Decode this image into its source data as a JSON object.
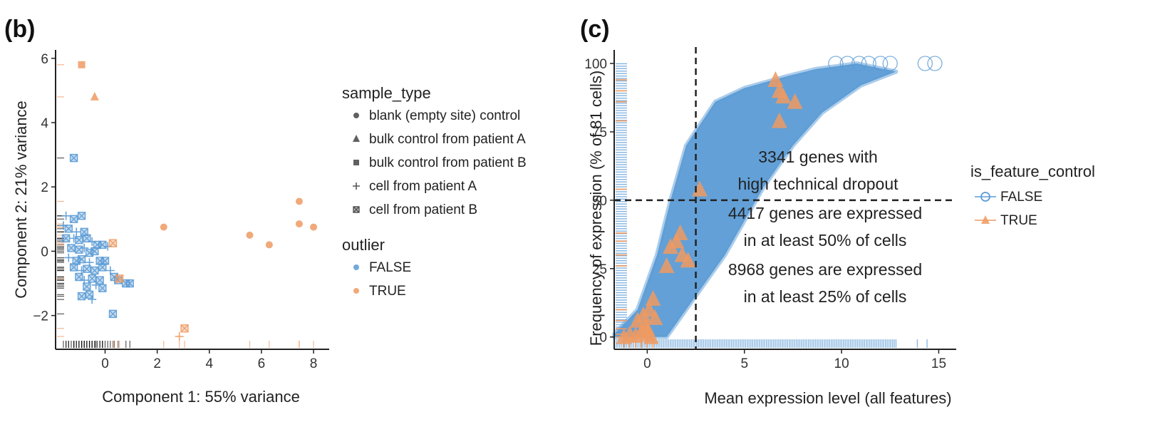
{
  "colors": {
    "false": "#5b9bd5",
    "true": "#ee9a62",
    "axis": "#222222",
    "rug": "#111111",
    "guide": "#222222"
  },
  "chart_data": [
    {
      "panel_label": "(b)",
      "type": "scatter",
      "xlabel": "Component 1: 55% variance",
      "ylabel": "Component 2: 21% variance",
      "xlim": [
        -1.9,
        8.6
      ],
      "ylim": [
        -3.05,
        6.35
      ],
      "xticks": [
        0,
        2,
        4,
        6,
        8
      ],
      "yticks": [
        -2,
        0,
        2,
        4,
        6
      ],
      "xtick_labels": [
        "0",
        "2",
        "4",
        "6",
        "8"
      ],
      "ytick_labels": [
        "−2",
        "0",
        "2",
        "4",
        "6"
      ],
      "rug": true,
      "legends": [
        {
          "title": "sample_type",
          "entries": [
            {
              "label": "blank (empty site) control",
              "shape": "circle"
            },
            {
              "label": "bulk control from patient A",
              "shape": "triangle"
            },
            {
              "label": "bulk control from patient B",
              "shape": "square"
            },
            {
              "label": "cell from patient A",
              "shape": "plus"
            },
            {
              "label": "cell from patient B",
              "shape": "boxx"
            }
          ]
        },
        {
          "title": "outlier",
          "entries": [
            {
              "label": "FALSE",
              "shape": "circle",
              "color": "#5b9bd5"
            },
            {
              "label": "TRUE",
              "shape": "circle",
              "color": "#ee9a62"
            }
          ]
        }
      ],
      "points": [
        {
          "x": -0.9,
          "y": 5.8,
          "shape": "square",
          "outlier": "TRUE"
        },
        {
          "x": -0.4,
          "y": 4.8,
          "shape": "triangle",
          "outlier": "TRUE"
        },
        {
          "x": -1.2,
          "y": 2.9,
          "shape": "boxx",
          "outlier": "FALSE"
        },
        {
          "x": -1.5,
          "y": 1.1,
          "shape": "plus",
          "outlier": "FALSE"
        },
        {
          "x": -1.2,
          "y": 1.0,
          "shape": "boxx",
          "outlier": "FALSE"
        },
        {
          "x": -0.9,
          "y": 1.1,
          "shape": "boxx",
          "outlier": "FALSE"
        },
        {
          "x": -1.6,
          "y": 0.8,
          "shape": "plus",
          "outlier": "FALSE"
        },
        {
          "x": -1.4,
          "y": 0.7,
          "shape": "boxx",
          "outlier": "FALSE"
        },
        {
          "x": -1.1,
          "y": 0.6,
          "shape": "plus",
          "outlier": "FALSE"
        },
        {
          "x": -0.8,
          "y": 0.6,
          "shape": "boxx",
          "outlier": "FALSE"
        },
        {
          "x": -1.5,
          "y": 0.4,
          "shape": "boxx",
          "outlier": "FALSE"
        },
        {
          "x": -1.2,
          "y": 0.4,
          "shape": "plus",
          "outlier": "FALSE"
        },
        {
          "x": -1.0,
          "y": 0.35,
          "shape": "boxx",
          "outlier": "FALSE"
        },
        {
          "x": -0.7,
          "y": 0.4,
          "shape": "boxx",
          "outlier": "FALSE"
        },
        {
          "x": -0.5,
          "y": 0.3,
          "shape": "plus",
          "outlier": "FALSE"
        },
        {
          "x": -0.3,
          "y": 0.2,
          "shape": "boxx",
          "outlier": "FALSE"
        },
        {
          "x": -0.1,
          "y": 0.2,
          "shape": "boxx",
          "outlier": "FALSE"
        },
        {
          "x": 0.1,
          "y": 0.15,
          "shape": "plus",
          "outlier": "FALSE"
        },
        {
          "x": -1.3,
          "y": 0.1,
          "shape": "boxx",
          "outlier": "FALSE"
        },
        {
          "x": -1.0,
          "y": 0.05,
          "shape": "boxx",
          "outlier": "FALSE"
        },
        {
          "x": -0.8,
          "y": 0.1,
          "shape": "plus",
          "outlier": "FALSE"
        },
        {
          "x": -0.6,
          "y": -0.05,
          "shape": "boxx",
          "outlier": "FALSE"
        },
        {
          "x": -0.4,
          "y": 0.0,
          "shape": "boxx",
          "outlier": "FALSE"
        },
        {
          "x": -1.4,
          "y": -0.2,
          "shape": "plus",
          "outlier": "FALSE"
        },
        {
          "x": -1.1,
          "y": -0.3,
          "shape": "boxx",
          "outlier": "FALSE"
        },
        {
          "x": -0.9,
          "y": -0.25,
          "shape": "boxx",
          "outlier": "FALSE"
        },
        {
          "x": -0.6,
          "y": -0.35,
          "shape": "plus",
          "outlier": "FALSE"
        },
        {
          "x": -0.2,
          "y": -0.3,
          "shape": "boxx",
          "outlier": "FALSE"
        },
        {
          "x": 0.0,
          "y": -0.3,
          "shape": "boxx",
          "outlier": "FALSE"
        },
        {
          "x": -1.2,
          "y": -0.5,
          "shape": "boxx",
          "outlier": "FALSE"
        },
        {
          "x": -0.9,
          "y": -0.6,
          "shape": "plus",
          "outlier": "FALSE"
        },
        {
          "x": -0.7,
          "y": -0.55,
          "shape": "boxx",
          "outlier": "FALSE"
        },
        {
          "x": -0.4,
          "y": -0.6,
          "shape": "boxx",
          "outlier": "FALSE"
        },
        {
          "x": -0.1,
          "y": -0.5,
          "shape": "boxx",
          "outlier": "FALSE"
        },
        {
          "x": 0.2,
          "y": -0.6,
          "shape": "plus",
          "outlier": "FALSE"
        },
        {
          "x": 0.35,
          "y": -0.8,
          "shape": "boxx",
          "outlier": "FALSE"
        },
        {
          "x": -1.0,
          "y": -0.8,
          "shape": "boxx",
          "outlier": "FALSE"
        },
        {
          "x": -0.8,
          "y": -0.9,
          "shape": "plus",
          "outlier": "FALSE"
        },
        {
          "x": -0.5,
          "y": -0.85,
          "shape": "boxx",
          "outlier": "FALSE"
        },
        {
          "x": -0.2,
          "y": -0.9,
          "shape": "boxx",
          "outlier": "FALSE"
        },
        {
          "x": 0.5,
          "y": -0.9,
          "shape": "boxx",
          "outlier": "FALSE"
        },
        {
          "x": 0.8,
          "y": -1.0,
          "shape": "boxx",
          "outlier": "FALSE"
        },
        {
          "x": 0.95,
          "y": -1.0,
          "shape": "boxx",
          "outlier": "FALSE"
        },
        {
          "x": -0.7,
          "y": -1.1,
          "shape": "boxx",
          "outlier": "FALSE"
        },
        {
          "x": -0.35,
          "y": -1.05,
          "shape": "plus",
          "outlier": "FALSE"
        },
        {
          "x": -0.1,
          "y": -1.15,
          "shape": "boxx",
          "outlier": "FALSE"
        },
        {
          "x": -0.6,
          "y": -1.35,
          "shape": "boxx",
          "outlier": "FALSE"
        },
        {
          "x": -0.9,
          "y": -1.4,
          "shape": "boxx",
          "outlier": "FALSE"
        },
        {
          "x": -0.5,
          "y": -1.5,
          "shape": "plus",
          "outlier": "FALSE"
        },
        {
          "x": 0.3,
          "y": -1.95,
          "shape": "boxx",
          "outlier": "FALSE"
        },
        {
          "x": 0.3,
          "y": 0.25,
          "shape": "boxx",
          "outlier": "TRUE"
        },
        {
          "x": 0.55,
          "y": -0.85,
          "shape": "boxx",
          "outlier": "TRUE"
        },
        {
          "x": 2.25,
          "y": 0.75,
          "shape": "circle",
          "outlier": "TRUE"
        },
        {
          "x": 5.55,
          "y": 0.5,
          "shape": "circle",
          "outlier": "TRUE"
        },
        {
          "x": 6.3,
          "y": 0.2,
          "shape": "circle",
          "outlier": "TRUE"
        },
        {
          "x": 7.45,
          "y": 1.55,
          "shape": "circle",
          "outlier": "TRUE"
        },
        {
          "x": 7.45,
          "y": 0.85,
          "shape": "circle",
          "outlier": "TRUE"
        },
        {
          "x": 8.0,
          "y": 0.75,
          "shape": "circle",
          "outlier": "TRUE"
        },
        {
          "x": 2.85,
          "y": -2.65,
          "shape": "plus",
          "outlier": "TRUE"
        },
        {
          "x": 3.05,
          "y": -2.4,
          "shape": "boxx",
          "outlier": "TRUE"
        }
      ]
    },
    {
      "panel_label": "(c)",
      "type": "scatter",
      "xlabel": "Mean expression level (all features)",
      "ylabel": "Frequency of expression (% of 81 cells)",
      "xlim": [
        -1.7,
        15.9
      ],
      "ylim": [
        -4.5,
        106
      ],
      "xticks": [
        0,
        5,
        10,
        15
      ],
      "yticks": [
        0,
        25,
        50,
        75,
        100
      ],
      "xtick_labels": [
        "0",
        "5",
        "10",
        "15"
      ],
      "ytick_labels": [
        "0",
        "25",
        "50",
        "75",
        "100"
      ],
      "rug": true,
      "vline_x": 2.5,
      "hline_y": 50,
      "legend": {
        "title": "is_feature_control",
        "entries": [
          {
            "label": "FALSE",
            "shape": "circle",
            "color": "#5b9bd5"
          },
          {
            "label": "TRUE",
            "shape": "triangle",
            "color": "#ee9a62"
          }
        ]
      },
      "annotations": [
        "3341 genes with",
        "high technical dropout",
        "4417 genes are expressed",
        "in at least 50% of cells",
        "8968 genes are expressed",
        "in at least 25% of cells"
      ],
      "is_feature_control_false_band": {
        "upper": [
          [
            -1.7,
            1
          ],
          [
            -0.5,
            10
          ],
          [
            0.5,
            30
          ],
          [
            1.2,
            50
          ],
          [
            2.0,
            70
          ],
          [
            3.5,
            86
          ],
          [
            5,
            91
          ],
          [
            7,
            95
          ],
          [
            8.7,
            98
          ],
          [
            10.8,
            100
          ]
        ],
        "lower": [
          [
            -1.7,
            0
          ],
          [
            1,
            0
          ],
          [
            1.5,
            5
          ],
          [
            2.5,
            15
          ],
          [
            4,
            30
          ],
          [
            6,
            55
          ],
          [
            7.5,
            70
          ],
          [
            9,
            82
          ],
          [
            11,
            92
          ],
          [
            12.8,
            97
          ]
        ]
      },
      "false_top_points": [
        [
          9.7,
          100
        ],
        [
          10.3,
          100
        ],
        [
          10.9,
          100
        ],
        [
          11.4,
          100
        ],
        [
          12.0,
          100
        ],
        [
          12.5,
          100
        ],
        [
          14.3,
          100
        ],
        [
          14.8,
          100
        ]
      ],
      "true_points": [
        [
          -1.2,
          0
        ],
        [
          -0.9,
          1
        ],
        [
          -0.6,
          0.5
        ],
        [
          -0.3,
          2
        ],
        [
          -0.1,
          4
        ],
        [
          0.0,
          1
        ],
        [
          0.2,
          0
        ],
        [
          -0.5,
          6
        ],
        [
          -0.2,
          8
        ],
        [
          0.1,
          10
        ],
        [
          0.3,
          14
        ],
        [
          0.0,
          3
        ],
        [
          0.4,
          7
        ],
        [
          1.0,
          26
        ],
        [
          1.2,
          33
        ],
        [
          1.5,
          35
        ],
        [
          1.7,
          38
        ],
        [
          1.8,
          30
        ],
        [
          2.1,
          28
        ],
        [
          2.7,
          54
        ],
        [
          6.6,
          94
        ],
        [
          6.8,
          90
        ],
        [
          7.0,
          88
        ],
        [
          7.6,
          86
        ],
        [
          6.8,
          79
        ]
      ],
      "rug_x_true": [
        -1.2,
        -0.9,
        -0.6,
        -0.3,
        0.0,
        0.3
      ],
      "rug_y_true": [
        0,
        1,
        3,
        6,
        10,
        26,
        30,
        35,
        38,
        54,
        79,
        86,
        90,
        94
      ]
    }
  ]
}
